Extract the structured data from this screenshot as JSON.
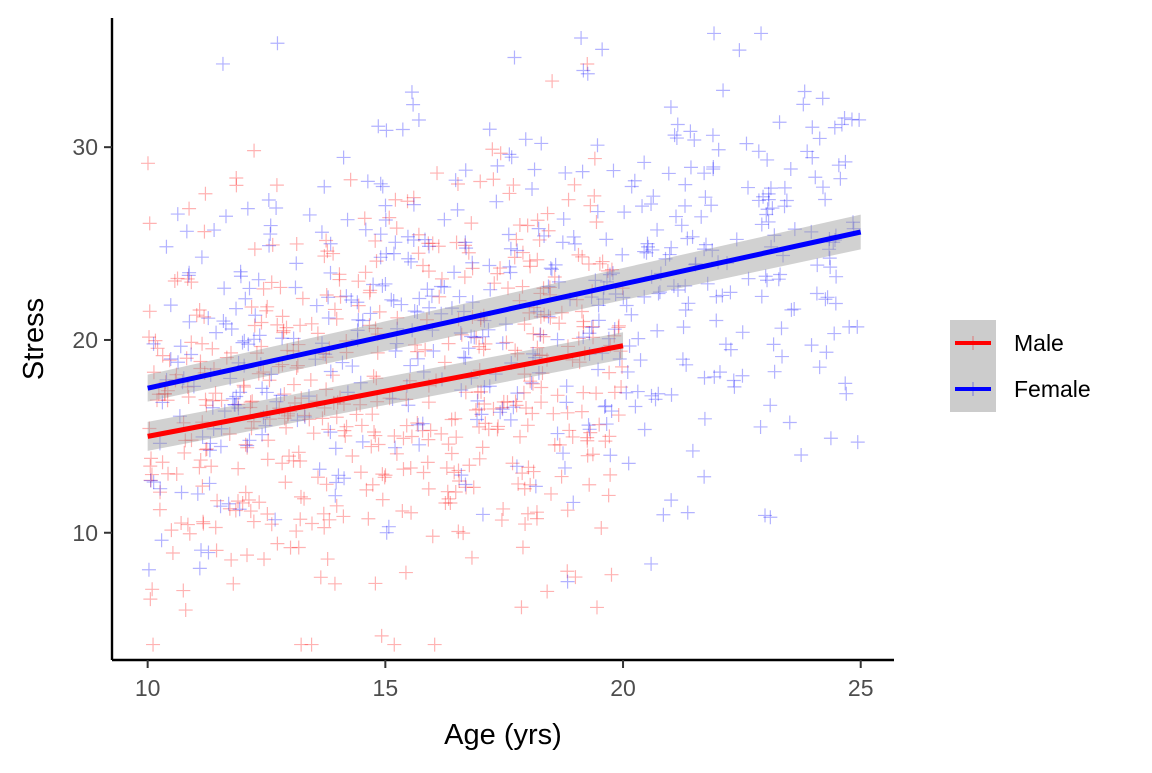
{
  "chart_data": {
    "type": "scatter",
    "title": "",
    "xlabel": "Age (yrs)",
    "ylabel": "Stress",
    "xlim": [
      9.25,
      25.7
    ],
    "ylim": [
      3.4,
      36.7
    ],
    "xticks": [
      10,
      15,
      20,
      25
    ],
    "yticks": [
      10,
      20,
      30
    ],
    "xtick_labels": [
      "10",
      "15",
      "20",
      "25"
    ],
    "ytick_labels": [
      "10",
      "20",
      "30"
    ],
    "grid": false,
    "marker": "plus",
    "legend": {
      "position": "right",
      "entries": [
        "Male",
        "Female"
      ]
    },
    "series": [
      {
        "name": "Male",
        "color": "#FF0000",
        "x_range": [
          10,
          20
        ],
        "point_count": 500,
        "y_center": 17.3,
        "y_spread": 5.2,
        "fit": {
          "x": [
            10,
            20
          ],
          "y": [
            15.0,
            19.7
          ],
          "ci_halfwidth": [
            0.75,
            0.7
          ]
        }
      },
      {
        "name": "Female",
        "color": "#0000FF",
        "x_range": [
          10,
          25
        ],
        "point_count": 500,
        "y_center": 21.5,
        "y_spread": 5.2,
        "fit": {
          "x": [
            10,
            25
          ],
          "y": [
            17.5,
            25.6
          ],
          "ci_halfwidth": [
            0.7,
            0.9
          ]
        }
      }
    ]
  }
}
